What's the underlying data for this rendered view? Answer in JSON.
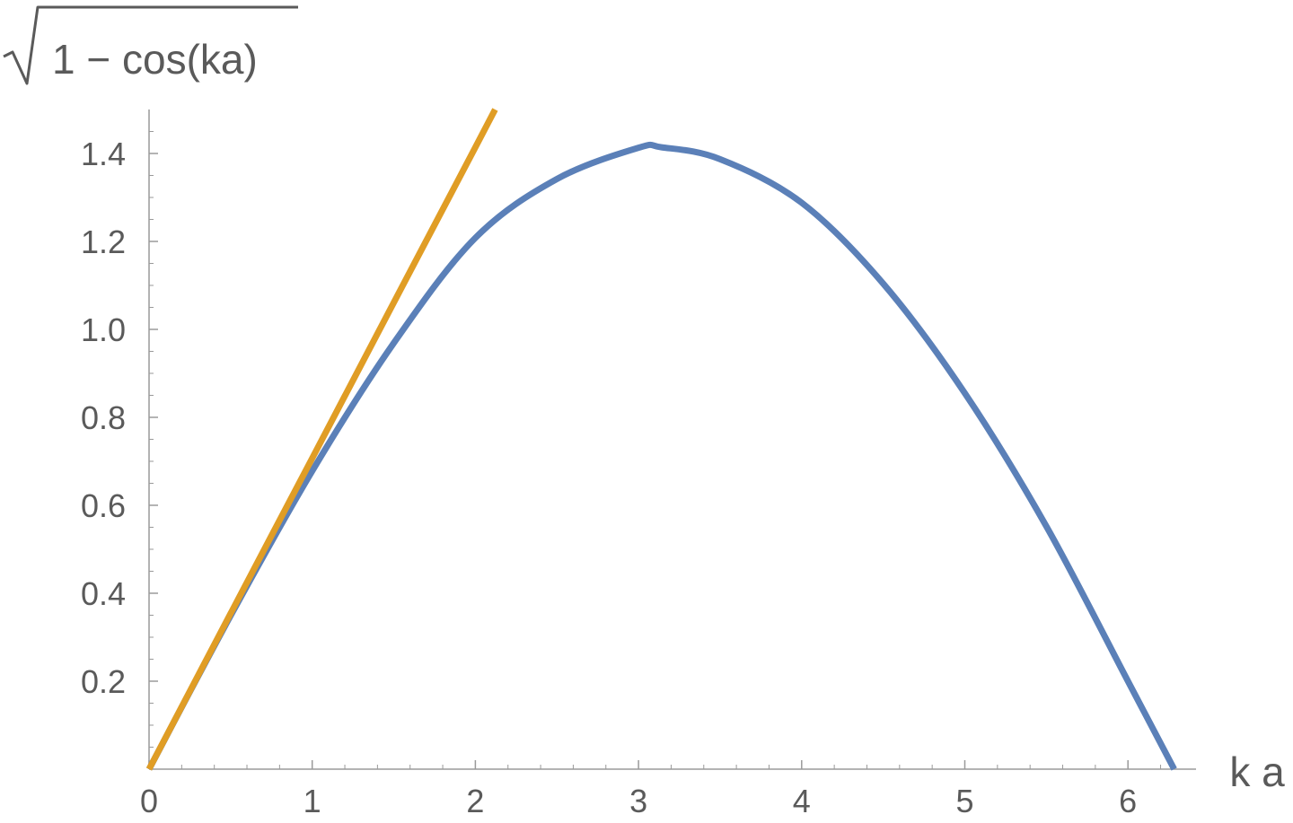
{
  "chart_data": {
    "type": "line",
    "xlabel": "k a",
    "ylabel": "√1 − cos(ka)",
    "ylabel_parts": {
      "radical_symbol": "√",
      "radicand": "1 − cos(ka)"
    },
    "xlim": [
      0,
      6.283
    ],
    "ylim": [
      0,
      1.5
    ],
    "x_ticks": [
      0,
      1,
      2,
      3,
      4,
      5,
      6
    ],
    "x_tick_labels": [
      "0",
      "1",
      "2",
      "3",
      "4",
      "5",
      "6"
    ],
    "y_ticks": [
      0.2,
      0.4,
      0.6,
      0.8,
      1.0,
      1.2,
      1.4
    ],
    "y_tick_labels": [
      "0.2",
      "0.4",
      "0.6",
      "0.8",
      "1.0",
      "1.2",
      "1.4"
    ],
    "grid": false,
    "series": [
      {
        "color": "#5b80b8",
        "x": [
          0,
          0.5,
          1.0,
          1.5,
          2.0,
          2.5,
          3.0,
          3.1416,
          3.5,
          4.0,
          4.5,
          5.0,
          5.5,
          6.0,
          6.2832
        ],
        "y": [
          0,
          0.349,
          0.678,
          0.969,
          1.208,
          1.342,
          1.413,
          1.414,
          1.387,
          1.288,
          1.104,
          0.855,
          0.552,
          0.2,
          0
        ]
      },
      {
        "color": "#e09d25",
        "x": [
          0,
          0.5,
          1.0,
          1.5,
          2.0,
          2.121
        ],
        "y": [
          0,
          0.354,
          0.707,
          1.061,
          1.414,
          1.5
        ]
      }
    ]
  }
}
